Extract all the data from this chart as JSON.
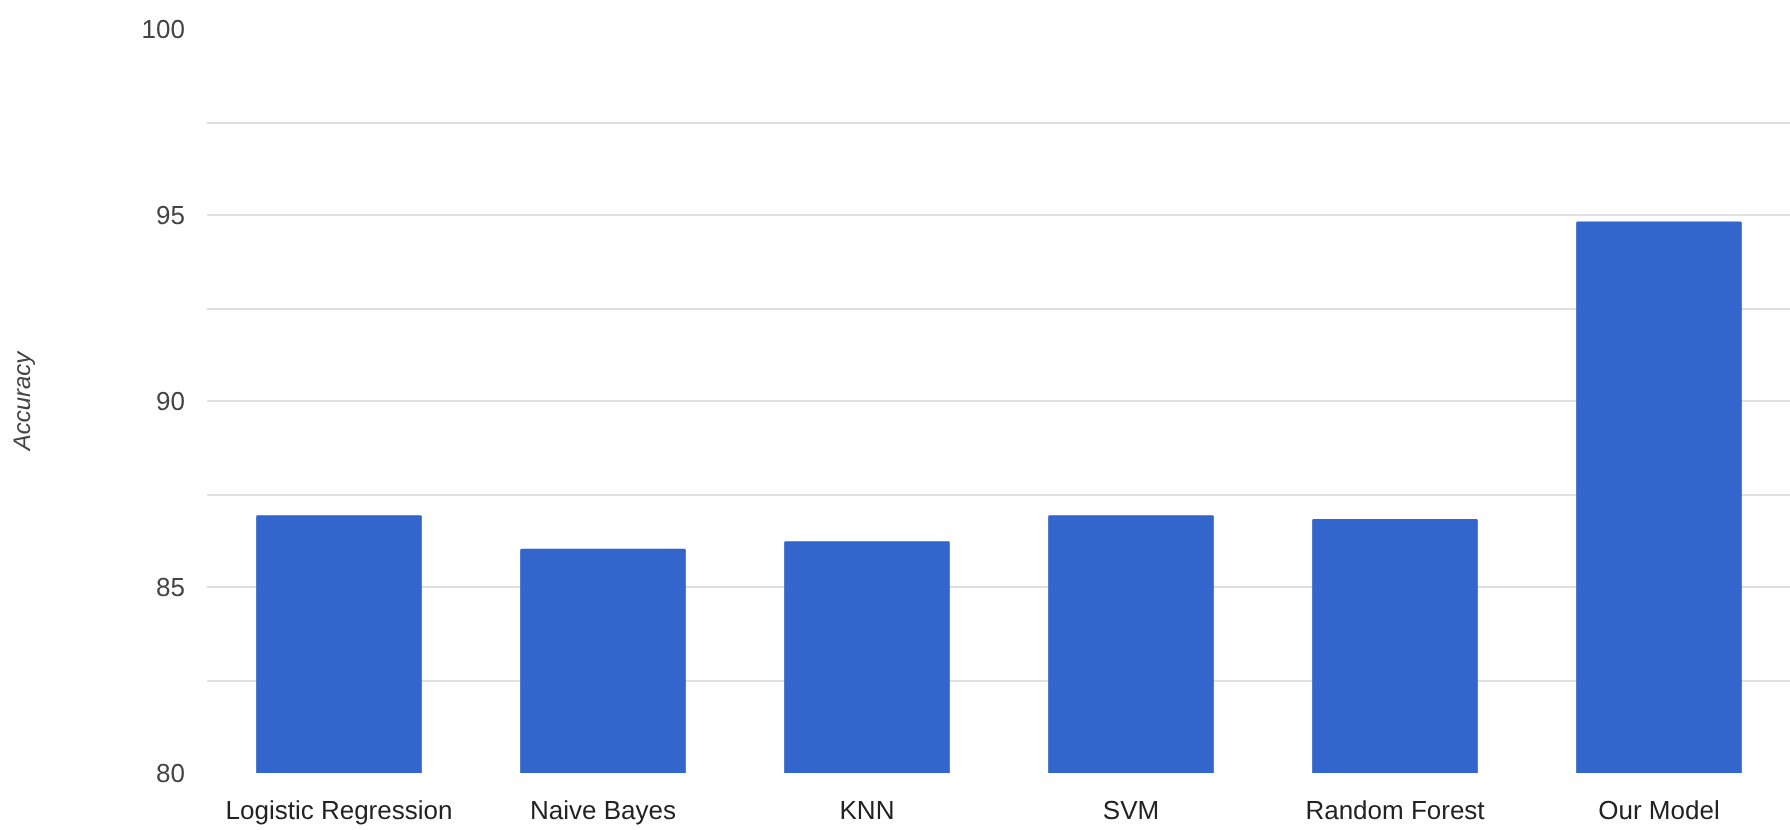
{
  "chart_data": {
    "type": "bar",
    "ylabel": "Accuracy",
    "categories": [
      "Logistic Regression",
      "Naive Bayes",
      "KNN",
      "SVM",
      "Random Forest",
      "Our Model"
    ],
    "values": [
      86.9,
      86.0,
      86.2,
      86.9,
      86.8,
      94.8
    ],
    "color": "#3366cc",
    "ylim": [
      80,
      100
    ],
    "yticks": [
      80,
      {
        "value": 82.5,
        "label": null
      },
      85,
      {
        "value": 87.5,
        "label": null
      },
      90,
      {
        "value": 92.5,
        "label": null
      },
      95,
      {
        "value": 97.5,
        "label": null
      },
      100
    ],
    "grid": "y"
  }
}
